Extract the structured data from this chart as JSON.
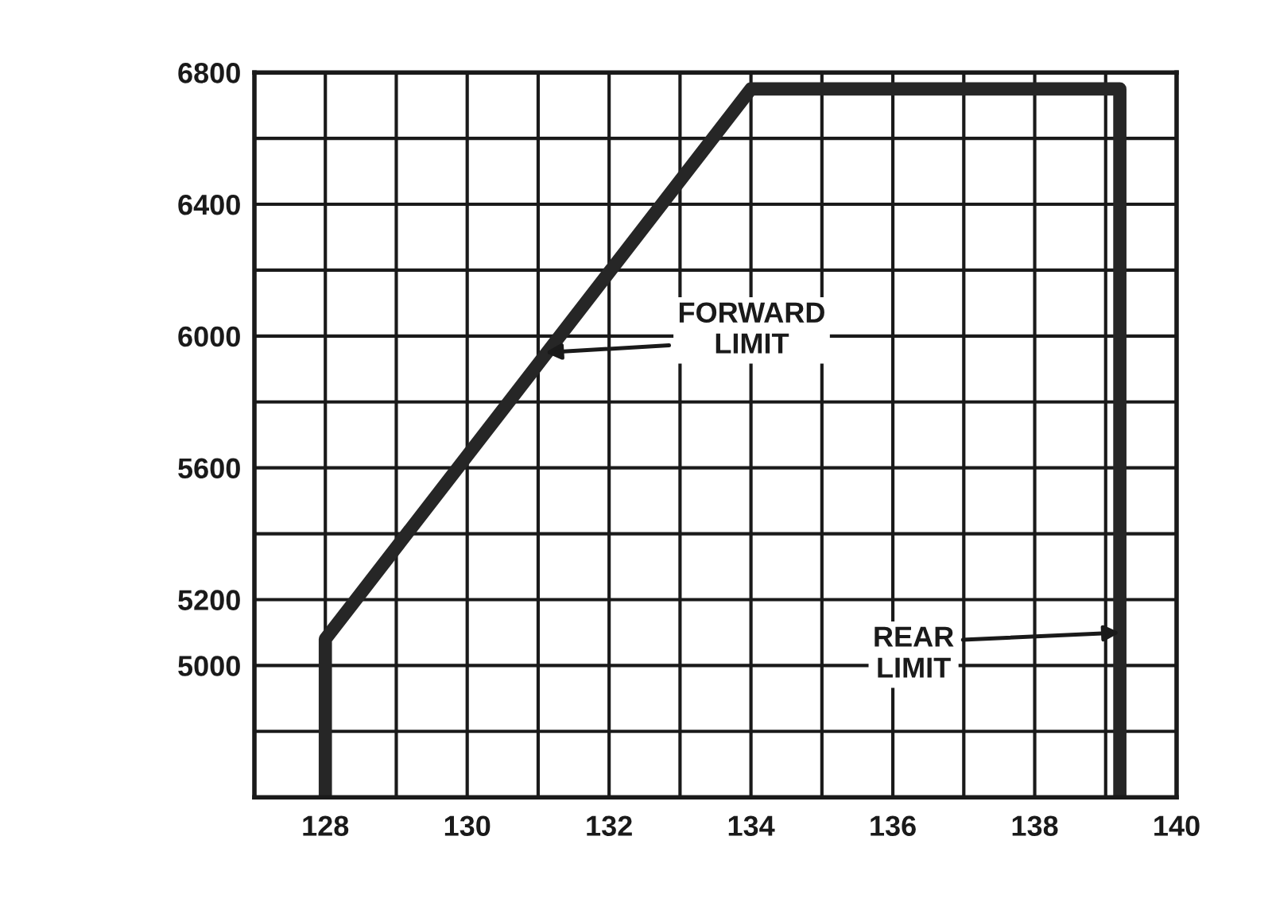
{
  "chart_data": {
    "type": "line",
    "xlim": [
      127,
      140
    ],
    "xticks": [
      {
        "value": 127,
        "label": null
      },
      128,
      {
        "value": 129,
        "label": null
      },
      130,
      {
        "value": 131,
        "label": null
      },
      132,
      {
        "value": 133,
        "label": null
      },
      134,
      {
        "value": 135,
        "label": null
      },
      136,
      {
        "value": 137,
        "label": null
      },
      138,
      {
        "value": 139,
        "label": null
      },
      140
    ],
    "ylim": [
      4600,
      6800
    ],
    "yticks": [
      {
        "value": 4600,
        "label": null
      },
      {
        "value": 4800,
        "label": null
      },
      5000,
      5200,
      {
        "value": 5400,
        "label": null
      },
      5600,
      {
        "value": 5800,
        "label": null
      },
      6000,
      {
        "value": 6200,
        "label": null
      },
      6400,
      {
        "value": 6600,
        "label": null
      },
      6800
    ],
    "grid": true,
    "x": [
      128,
      128,
      134,
      139.2,
      139.2
    ],
    "series": [
      {
        "color": "#262626",
        "values": [
          4600,
          5080,
          6750,
          6750,
          4600
        ]
      }
    ],
    "annotations": [
      {
        "text": "FORWARD\nLIMIT",
        "x": 131.1,
        "y": 5950
      },
      {
        "text": "REAR\nLIMIT",
        "x": 139.2,
        "y": 5100
      }
    ]
  }
}
